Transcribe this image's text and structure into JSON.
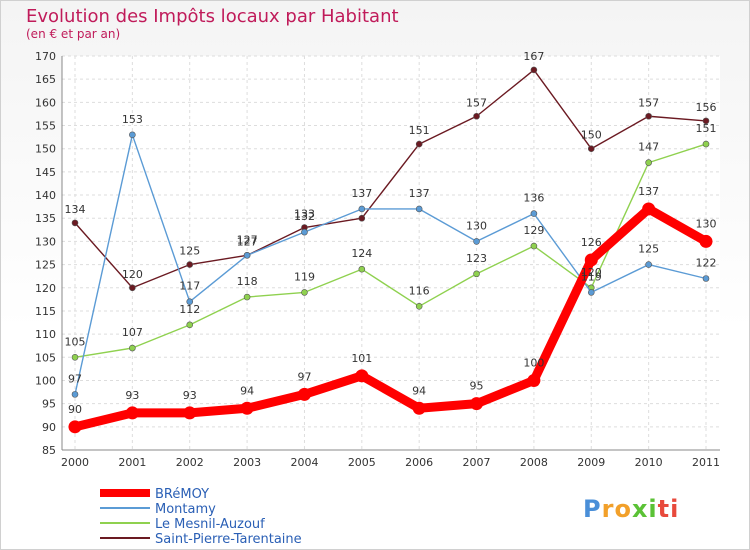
{
  "chart_data": {
    "type": "line",
    "title": "Evolution des Impôts locaux par Habitant",
    "subtitle": "(en € et par an)",
    "categories": [
      "2000",
      "2001",
      "2002",
      "2003",
      "2004",
      "2005",
      "2006",
      "2007",
      "2008",
      "2009",
      "2010",
      "2011"
    ],
    "ylim": [
      85,
      170
    ],
    "yticks": [
      85,
      90,
      95,
      100,
      105,
      110,
      115,
      120,
      125,
      130,
      135,
      140,
      145,
      150,
      155,
      160,
      165,
      170
    ],
    "grid": true,
    "legend_position": "bottom-left",
    "series": [
      {
        "name": "Saint-Pierre-Tarentaine",
        "color": "#6b1a22",
        "values": [
          134,
          120,
          125,
          127,
          133,
          135,
          151,
          157,
          167,
          150,
          157,
          156
        ]
      },
      {
        "name": "Le Mesnil-Auzouf",
        "color": "#8fd14f",
        "values": [
          105,
          107,
          112,
          118,
          119,
          124,
          116,
          123,
          129,
          120,
          147,
          151
        ]
      },
      {
        "name": "Montamy",
        "color": "#5b9bd5",
        "values": [
          97,
          153,
          117,
          127,
          132,
          137,
          137,
          130,
          136,
          119,
          125,
          122
        ]
      },
      {
        "name": "BRéMOY",
        "color": "#ff0000",
        "values": [
          90,
          93,
          93,
          94,
          97,
          101,
          94,
          95,
          100,
          126,
          137,
          130
        ]
      }
    ],
    "data_labels": {
      "Saint-Pierre-Tarentaine": [
        "134",
        "120",
        "125",
        "127",
        "133",
        "",
        "151",
        "157",
        "167",
        "150",
        "157",
        "156"
      ],
      "Le Mesnil-Auzouf": [
        "105",
        "107",
        "112",
        "118",
        "119",
        "124",
        "116",
        "123",
        "129",
        "120",
        "147",
        "151"
      ],
      "Montamy": [
        "97",
        "153",
        "117",
        "127",
        "132",
        "137",
        "137",
        "130",
        "136",
        "119",
        "125",
        "122"
      ],
      "BRéMOY": [
        "90",
        "93",
        "93",
        "94",
        "97",
        "101",
        "94",
        "95",
        "100",
        "126",
        "137",
        "130"
      ]
    },
    "legend": [
      "BRéMOY",
      "Montamy",
      "Le Mesnil-Auzouf",
      "Saint-Pierre-Tarentaine"
    ]
  },
  "brand": {
    "letters": [
      "P",
      "r",
      "o",
      "x",
      "i",
      "t",
      "i"
    ],
    "colors": [
      "#4a8fd8",
      "#f2a02a",
      "#f2a02a",
      "#5bc236",
      "#5bc236",
      "#e84a3c",
      "#e84a3c"
    ]
  }
}
